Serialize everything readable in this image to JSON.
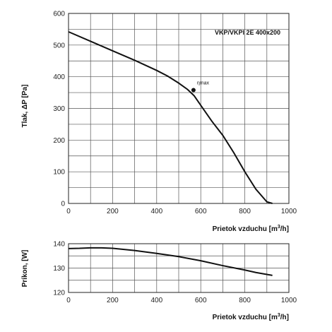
{
  "chart_data": [
    {
      "type": "line",
      "title": "VKP/VKPI 2E 400x200",
      "xlabel": "Prietok vzduchu  [m3/h]",
      "xlabel_main": "Prietok vzduchu  [m",
      "xlabel_sup": "3",
      "xlabel_end": "/h]",
      "ylabel": "Tlak, ΔP [Pa]",
      "xlim": [
        0,
        1000
      ],
      "ylim": [
        0,
        600
      ],
      "xticks": [
        "0",
        "200",
        "400",
        "600",
        "800",
        "1000"
      ],
      "yticks": [
        "0",
        "100",
        "200",
        "300",
        "400",
        "500",
        "600"
      ],
      "grid": true,
      "series": [
        {
          "x": [
            0,
            100,
            200,
            300,
            400,
            450,
            500,
            540,
            570,
            600,
            650,
            700,
            750,
            800,
            850,
            900,
            925
          ],
          "y": [
            542,
            512,
            482,
            452,
            420,
            402,
            380,
            360,
            340,
            310,
            260,
            215,
            160,
            100,
            45,
            5,
            0
          ]
        }
      ],
      "annotation": {
        "label": "ηmax",
        "x": 567,
        "y": 358
      }
    },
    {
      "type": "line",
      "xlabel": "Prietok vzduchu  [m3/h]",
      "xlabel_main": "Prietok vzduchu  [m",
      "xlabel_sup": "3",
      "xlabel_end": "/h]",
      "ylabel": "Príkon, [W]",
      "xlim": [
        0,
        1000
      ],
      "ylim": [
        120,
        140
      ],
      "xticks": [
        "0",
        "200",
        "400",
        "600",
        "800",
        "1000"
      ],
      "yticks": [
        "120",
        "130",
        "140"
      ],
      "grid": true,
      "series": [
        {
          "x": [
            0,
            50,
            100,
            150,
            200,
            300,
            400,
            500,
            600,
            700,
            800,
            850,
            900,
            925
          ],
          "y": [
            138,
            138.1,
            138.3,
            138.3,
            138.1,
            137.2,
            136,
            134.7,
            133,
            131,
            129.2,
            128.2,
            127.4,
            127
          ]
        }
      ]
    }
  ]
}
